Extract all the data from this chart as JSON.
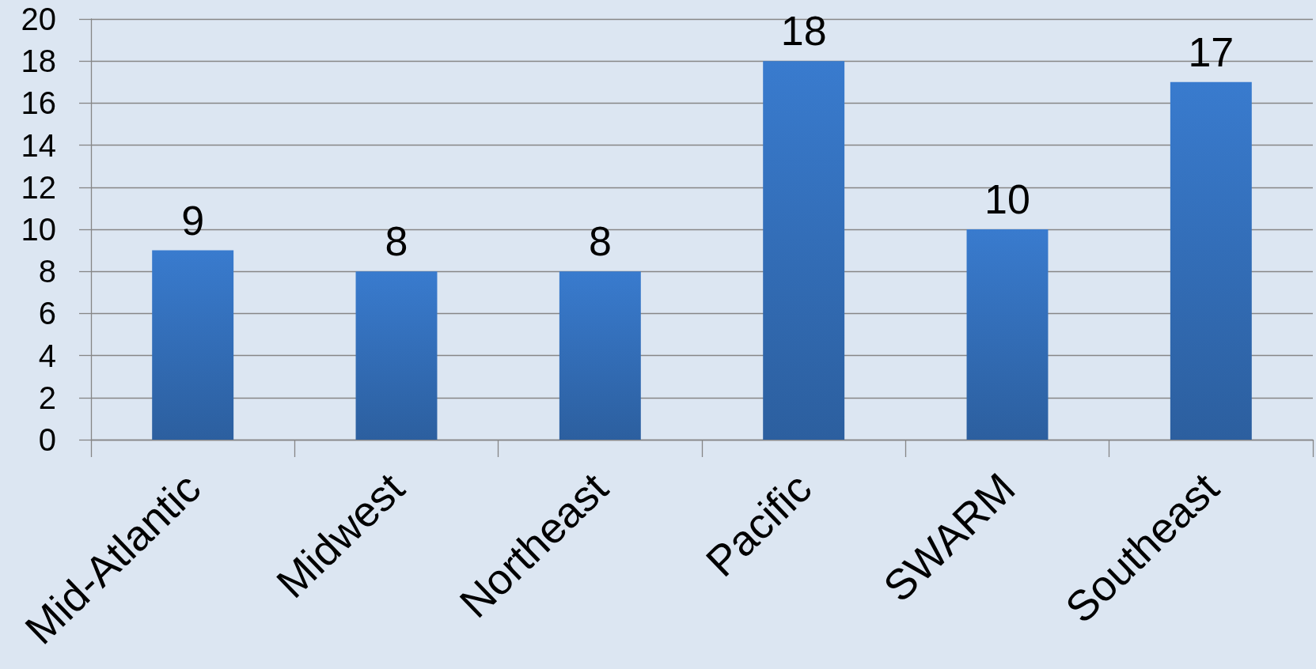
{
  "chart_data": {
    "type": "bar",
    "categories": [
      "Mid-Atlantic",
      "Midwest",
      "Northeast",
      "Pacific",
      "SWARM",
      "Southeast"
    ],
    "values": [
      9,
      8,
      8,
      18,
      10,
      17
    ],
    "color": "#3470bb",
    "ylim": [
      0,
      20
    ],
    "yticks": [
      0,
      2,
      4,
      6,
      8,
      10,
      12,
      14,
      16,
      18,
      20
    ],
    "grid": "y",
    "data_labels": true
  }
}
